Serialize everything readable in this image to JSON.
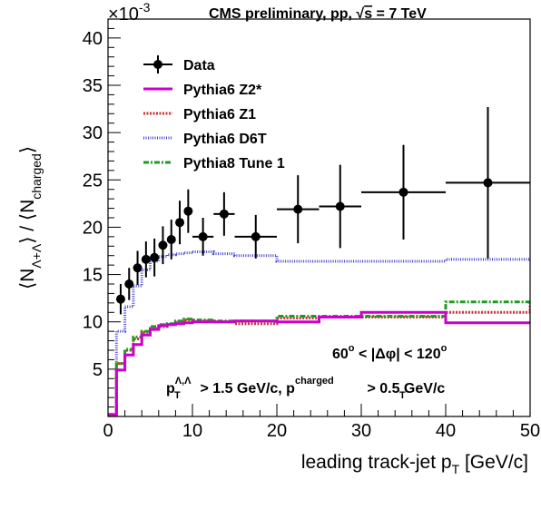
{
  "chart_data": {
    "type": "line",
    "header": {
      "experiment": "CMS preliminary, pp, ",
      "sqrt_symbol": "√",
      "energy_var": "s",
      "energy_value": " = 7 TeV"
    },
    "ylabel": {
      "open": "⟨N",
      "sub": "Λ+Λ",
      "mid": "⟩ / ⟨N",
      "sub2": "charged",
      "close": "⟩"
    },
    "xlabel": {
      "main": "leading track-jet p",
      "sub": "T",
      "unit": " [GeV/c]"
    },
    "y_multiplier": {
      "text": "×10",
      "exp": "-3"
    },
    "xlim": [
      0,
      50
    ],
    "ylim": [
      0,
      42
    ],
    "x_ticks": [
      "0",
      "10",
      "20",
      "30",
      "40",
      "50"
    ],
    "y_ticks": [
      "5",
      "10",
      "15",
      "20",
      "25",
      "30",
      "35",
      "40"
    ],
    "legend": {
      "data": "Data",
      "z2": "Pythia6 Z2*",
      "z1": "Pythia6 Z1",
      "d6t": "Pythia6 D6T",
      "p8": "Pythia8 Tune 1"
    },
    "annotations": {
      "dphi": {
        "a": "60",
        "deg": "o",
        "b": " < |Δφ| < 120",
        "deg2": "o"
      },
      "cuts": {
        "p1": "p",
        "sup1": "Λ,Λ",
        "sub1": "T",
        "mid": " > 1.5 GeV/c, p",
        "sup2": "charged",
        "sub2": "T",
        "end": " > 0.5 GeV/c"
      }
    },
    "colors": {
      "data": "#000000",
      "z2": "#cc00cc",
      "z1": "#cc3333",
      "d6t": "#4444cc",
      "p8": "#229922"
    },
    "data_points": [
      {
        "x": 1.5,
        "y": 12.4,
        "xerr": 0.5,
        "yerr": 1.6
      },
      {
        "x": 2.5,
        "y": 14.0,
        "xerr": 0.5,
        "yerr": 1.7
      },
      {
        "x": 3.5,
        "y": 15.7,
        "xerr": 0.5,
        "yerr": 1.8
      },
      {
        "x": 4.5,
        "y": 16.6,
        "xerr": 0.5,
        "yerr": 1.9
      },
      {
        "x": 5.5,
        "y": 16.8,
        "xerr": 0.5,
        "yerr": 2.0
      },
      {
        "x": 6.5,
        "y": 18.1,
        "xerr": 0.5,
        "yerr": 2.0
      },
      {
        "x": 7.5,
        "y": 18.7,
        "xerr": 0.5,
        "yerr": 2.1
      },
      {
        "x": 8.5,
        "y": 20.5,
        "xerr": 0.5,
        "yerr": 2.3
      },
      {
        "x": 9.5,
        "y": 21.7,
        "xerr": 0.5,
        "yerr": 2.3
      },
      {
        "x": 11.25,
        "y": 19.0,
        "xerr": 1.25,
        "yerr": 2.0
      },
      {
        "x": 13.75,
        "y": 21.4,
        "xerr": 1.25,
        "yerr": 2.3
      },
      {
        "x": 17.5,
        "y": 19.0,
        "xerr": 2.5,
        "yerr": 2.3
      },
      {
        "x": 22.5,
        "y": 21.9,
        "xerr": 2.5,
        "yerr": 3.6
      },
      {
        "x": 27.5,
        "y": 22.2,
        "xerr": 2.5,
        "yerr": 4.4
      },
      {
        "x": 35.0,
        "y": 23.7,
        "xerr": 5.0,
        "yerr": 5.0
      },
      {
        "x": 45.0,
        "y": 24.7,
        "xerr": 5.0,
        "yerr": 8.0
      }
    ],
    "series": [
      {
        "name": "Pythia6 Z2*",
        "edges": [
          0,
          1,
          2,
          3,
          4,
          5,
          6,
          7,
          8,
          9,
          10,
          12.5,
          15,
          20,
          25,
          30,
          40,
          50
        ],
        "values": [
          0.2,
          4.9,
          6.5,
          7.6,
          8.6,
          9.2,
          9.6,
          9.7,
          9.8,
          9.9,
          10.0,
          10.0,
          10.1,
          10.0,
          10.5,
          11.0,
          9.9,
          9.9
        ]
      },
      {
        "name": "Pythia6 Z1",
        "edges": [
          0,
          1,
          2,
          3,
          4,
          5,
          6,
          7,
          8,
          9,
          10,
          12.5,
          15,
          20,
          25,
          30,
          40,
          50
        ],
        "values": [
          0.2,
          5.6,
          7.0,
          8.2,
          8.9,
          9.3,
          9.5,
          9.7,
          10.0,
          10.2,
          10.1,
          10.0,
          9.8,
          10.4,
          10.5,
          10.5,
          11.0,
          12.0
        ]
      },
      {
        "name": "Pythia6 D6T",
        "edges": [
          0,
          1,
          2,
          3,
          4,
          5,
          6,
          7,
          8,
          9,
          10,
          12.5,
          15,
          20,
          25,
          30,
          40,
          50
        ],
        "values": [
          0.2,
          9.0,
          11.6,
          13.8,
          15.5,
          16.4,
          16.9,
          17.1,
          17.2,
          17.3,
          17.4,
          17.2,
          17.0,
          16.4,
          16.4,
          16.4,
          16.6,
          16.4
        ]
      },
      {
        "name": "Pythia8 Tune 1",
        "edges": [
          0,
          1,
          2,
          3,
          4,
          5,
          6,
          7,
          8,
          9,
          10,
          12.5,
          15,
          20,
          25,
          30,
          40,
          50
        ],
        "values": [
          0.2,
          5.6,
          7.1,
          8.4,
          9.0,
          9.5,
          9.7,
          9.8,
          10.1,
          10.3,
          10.2,
          10.1,
          10.1,
          10.6,
          10.6,
          10.6,
          12.1,
          12.1
        ]
      }
    ]
  }
}
